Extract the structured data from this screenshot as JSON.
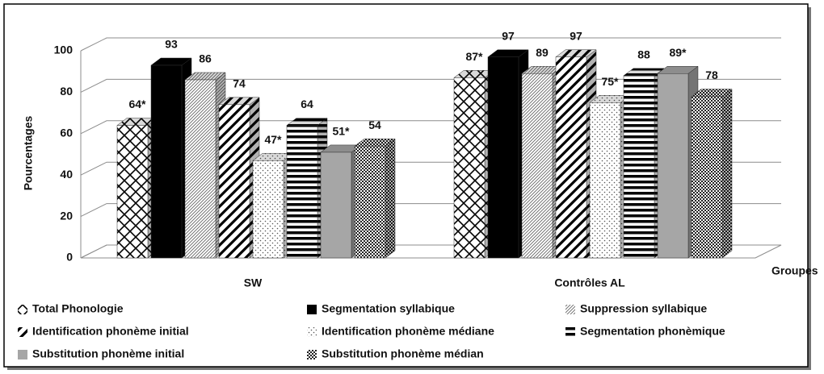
{
  "chart_data": {
    "type": "bar3d",
    "categories": [
      "SW",
      "Contrôles AL"
    ],
    "xlabel": "Groupes",
    "ylabel": "Pourcentages",
    "ylim": [
      0,
      100
    ],
    "yticks": [
      0,
      20,
      40,
      60,
      80,
      100
    ],
    "grid": true,
    "series": [
      {
        "name": "Total Phonologie",
        "color": "#ffffff",
        "values": [
          64,
          87
        ],
        "value_labels": [
          "64*",
          "87*"
        ]
      },
      {
        "name": "Segmentation syllabique",
        "color": "#000000",
        "values": [
          93,
          97
        ]
      },
      {
        "name": "Suppression syllabique",
        "color": "#ffffff",
        "values": [
          86,
          89
        ]
      },
      {
        "name": "Identification phonème initial",
        "color": "#ffffff",
        "values": [
          74,
          97
        ]
      },
      {
        "name": "Identification phonème médiane",
        "color": "#ffffff",
        "values": [
          47,
          75
        ],
        "value_labels": [
          "47*",
          "75*"
        ]
      },
      {
        "name": "Segmentation phonèmique",
        "color": "#ffffff",
        "values": [
          64,
          88
        ]
      },
      {
        "name": "Substitution phonème initial",
        "color": "#a6a6a6",
        "values": [
          51,
          89
        ],
        "value_labels": [
          "51*",
          "89*"
        ]
      },
      {
        "name": "Substitution phonème médian",
        "color": "#ffffff",
        "values": [
          54,
          78
        ]
      }
    ]
  }
}
